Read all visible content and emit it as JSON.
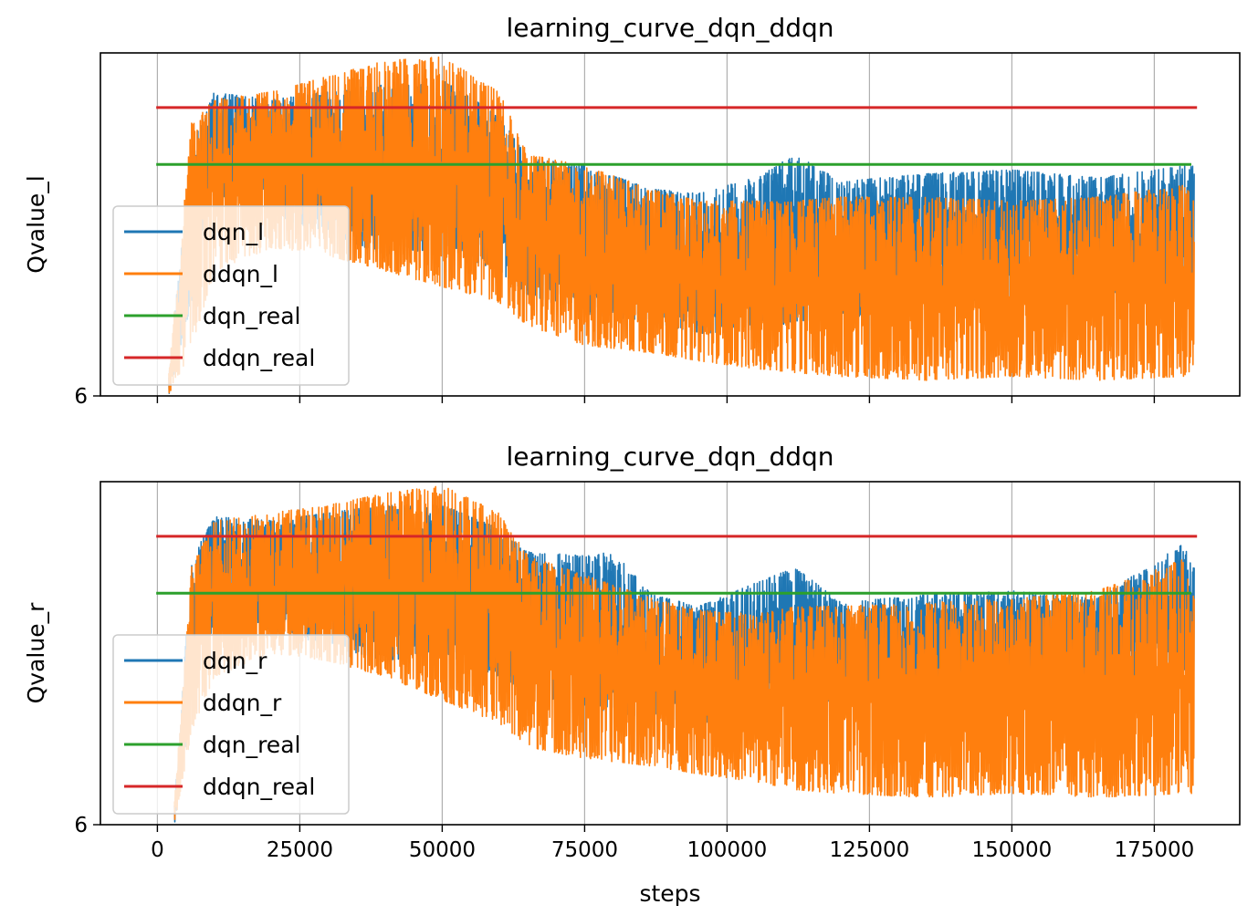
{
  "chart_data": [
    {
      "type": "line",
      "title": "learning_curve_dqn_ddqn",
      "xlabel": "",
      "ylabel": "Qvalue_l",
      "xlim": [
        -10000,
        190000
      ],
      "ylim": [
        6,
        10.4
      ],
      "xticks": [
        0,
        25000,
        50000,
        75000,
        100000,
        125000,
        150000,
        175000
      ],
      "xtick_labels_visible": false,
      "yticks": [
        6
      ],
      "grid": "vertical",
      "legend": "lower-left",
      "series": [
        {
          "name": "dqn_l",
          "color": "#1f77b4",
          "kind": "noisy",
          "envelope": {
            "x": [
              2000,
              6000,
              10000,
              20000,
              30000,
              40000,
              50000,
              60000,
              65000,
              75000,
              87000,
              95000,
              105000,
              112000,
              120000,
              135000,
              150000,
              165000,
              180000,
              182000
            ],
            "hi": [
              6.3,
              9.2,
              9.9,
              9.8,
              9.9,
              10.0,
              10.05,
              9.6,
              9.05,
              8.95,
              8.65,
              8.6,
              8.8,
              9.1,
              8.75,
              8.85,
              8.9,
              8.8,
              8.95,
              8.95
            ],
            "lo": [
              6.0,
              7.2,
              8.5,
              8.3,
              8.1,
              7.8,
              7.9,
              7.6,
              7.3,
              7.05,
              6.95,
              6.8,
              6.85,
              6.95,
              7.0,
              7.1,
              7.2,
              7.15,
              7.25,
              7.3
            ]
          }
        },
        {
          "name": "ddqn_l",
          "color": "#ff7f0e",
          "kind": "noisy",
          "envelope": {
            "x": [
              2000,
              6000,
              10000,
              20000,
              30000,
              40000,
              50000,
              60000,
              65000,
              75000,
              87000,
              95000,
              105000,
              112000,
              120000,
              135000,
              150000,
              165000,
              180000,
              182000
            ],
            "hi": [
              6.3,
              9.5,
              9.8,
              9.9,
              10.1,
              10.3,
              10.35,
              9.9,
              9.1,
              8.95,
              8.65,
              8.5,
              8.5,
              8.5,
              8.55,
              8.55,
              8.5,
              8.55,
              8.7,
              8.55
            ],
            "lo": [
              6.0,
              6.6,
              7.6,
              7.9,
              7.8,
              7.6,
              7.4,
              7.2,
              6.9,
              6.65,
              6.55,
              6.45,
              6.35,
              6.3,
              6.25,
              6.2,
              6.25,
              6.2,
              6.25,
              6.3
            ]
          }
        },
        {
          "name": "dqn_real",
          "color": "#2ca02c",
          "kind": "constant",
          "x": [
            -200,
            181500
          ],
          "y": [
            8.97,
            8.97
          ]
        },
        {
          "name": "ddqn_real",
          "color": "#d62728",
          "kind": "constant",
          "x": [
            -200,
            182500
          ],
          "y": [
            9.7,
            9.7
          ]
        }
      ]
    },
    {
      "type": "line",
      "title": "learning_curve_dqn_ddqn",
      "xlabel": "steps",
      "ylabel": "Qvalue_r",
      "xlim": [
        -10000,
        190000
      ],
      "ylim": [
        6,
        10.4
      ],
      "xticks": [
        0,
        25000,
        50000,
        75000,
        100000,
        125000,
        150000,
        175000
      ],
      "xtick_labels": [
        "0",
        "25000",
        "50000",
        "75000",
        "100000",
        "125000",
        "150000",
        "175000"
      ],
      "yticks": [
        6
      ],
      "grid": "vertical",
      "legend": "lower-left",
      "series": [
        {
          "name": "dqn_r",
          "color": "#1f77b4",
          "kind": "noisy",
          "envelope": {
            "x": [
              3000,
              6000,
              10000,
              20000,
              30000,
              40000,
              50000,
              60000,
              65000,
              75000,
              80000,
              87000,
              95000,
              105000,
              112000,
              120000,
              135000,
              150000,
              165000,
              180000,
              182000
            ],
            "hi": [
              6.3,
              9.4,
              9.95,
              9.9,
              10.0,
              10.1,
              10.1,
              9.8,
              9.5,
              9.45,
              9.5,
              8.95,
              8.8,
              9.1,
              9.3,
              8.85,
              8.95,
              9.0,
              8.9,
              9.6,
              9.3
            ],
            "lo": [
              6.0,
              7.6,
              8.6,
              8.5,
              8.3,
              8.1,
              8.2,
              7.9,
              7.7,
              7.5,
              7.45,
              7.35,
              7.3,
              7.35,
              7.5,
              7.6,
              7.7,
              7.8,
              7.75,
              7.85,
              7.9
            ]
          }
        },
        {
          "name": "ddqn_r",
          "color": "#ff7f0e",
          "kind": "noisy",
          "envelope": {
            "x": [
              3000,
              6000,
              10000,
              20000,
              30000,
              40000,
              50000,
              60000,
              65000,
              75000,
              87000,
              95000,
              105000,
              112000,
              120000,
              135000,
              150000,
              165000,
              180000,
              182000
            ],
            "hi": [
              6.3,
              9.3,
              9.9,
              10.0,
              10.1,
              10.25,
              10.35,
              10.0,
              9.45,
              9.2,
              8.9,
              8.75,
              8.7,
              8.8,
              8.8,
              8.85,
              8.9,
              9.0,
              9.4,
              8.9
            ],
            "lo": [
              6.0,
              7.2,
              7.9,
              8.2,
              8.1,
              7.9,
              7.6,
              7.3,
              7.0,
              6.85,
              6.75,
              6.65,
              6.55,
              6.45,
              6.4,
              6.35,
              6.4,
              6.35,
              6.4,
              6.4
            ]
          }
        },
        {
          "name": "dqn_real",
          "color": "#2ca02c",
          "kind": "constant",
          "x": [
            -200,
            181500
          ],
          "y": [
            8.97,
            8.97
          ]
        },
        {
          "name": "ddqn_real",
          "color": "#d62728",
          "kind": "constant",
          "x": [
            -200,
            182500
          ],
          "y": [
            9.7,
            9.7
          ]
        }
      ]
    }
  ]
}
